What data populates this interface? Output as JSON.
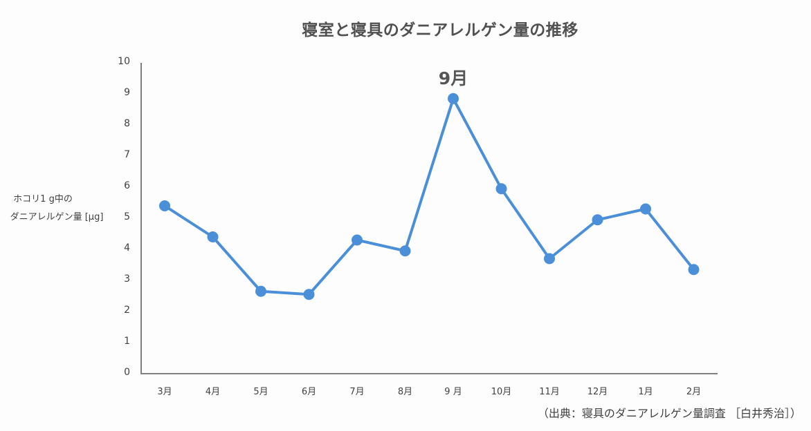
{
  "chart_data": {
    "type": "line",
    "title": "寝室と寝具のダニアレルゲン量の推移",
    "xlabel": "",
    "ylabel": [
      "ホコリ1 g中の",
      "ダニアレルゲン量 [µg]"
    ],
    "ylim": [
      0,
      10
    ],
    "yticks": [
      "0",
      "1",
      "2",
      "3",
      "4",
      "5",
      "6",
      "7",
      "8",
      "9",
      "10"
    ],
    "categories": [
      "3月",
      "4月",
      "5月",
      "6月",
      "7月",
      "8月",
      "9 月",
      "10月",
      "11月",
      "12月",
      "1月",
      "2月"
    ],
    "series": [
      {
        "name": "ダニアレルゲン量",
        "color": "#4a8fd8",
        "values": [
          5.4,
          4.4,
          2.65,
          2.55,
          4.3,
          3.95,
          8.85,
          5.95,
          3.7,
          4.95,
          5.3,
          3.35
        ]
      }
    ],
    "annotations": [
      {
        "label": "9月",
        "category_index": 6
      }
    ],
    "grid": false,
    "legend": "none",
    "source": "（出典：寝具のダニアレルゲン量調査 ［白井秀治］）"
  }
}
